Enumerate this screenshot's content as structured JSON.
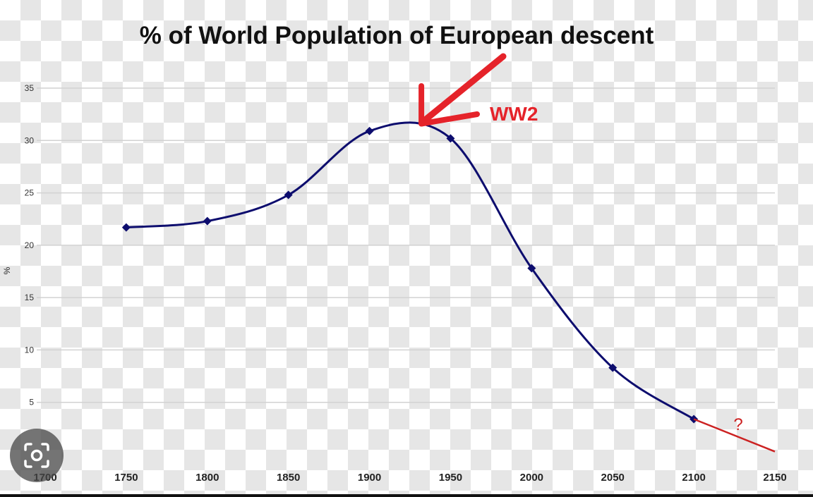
{
  "chart_data": {
    "type": "line",
    "title": "% of World Population of European descent",
    "ylabel": "%",
    "xlabel": "",
    "xlim": [
      1700,
      2150
    ],
    "ylim": [
      0,
      35
    ],
    "x_ticks": [
      "1700",
      "1750",
      "1800",
      "1850",
      "1900",
      "1950",
      "2000",
      "2050",
      "2100",
      "2150"
    ],
    "y_ticks": [
      "5",
      "10",
      "15",
      "20",
      "25",
      "30",
      "35"
    ],
    "grid": true,
    "series": [
      {
        "x": [
          1750,
          1800,
          1850,
          1900,
          1950,
          2000,
          2050,
          2100
        ],
        "y": [
          21.7,
          22.3,
          24.8,
          30.9,
          30.2,
          17.8,
          8.3,
          3.4
        ],
        "color": "#0d0d6e"
      }
    ],
    "projection": {
      "x": [
        2100,
        2150
      ],
      "y": [
        3.4,
        0.3
      ],
      "color": "#cc2222",
      "label": "?"
    },
    "annotations": [
      {
        "text": "WW2",
        "color": "#e5232a",
        "target_x": 1932,
        "target_y": 31.6
      }
    ]
  }
}
